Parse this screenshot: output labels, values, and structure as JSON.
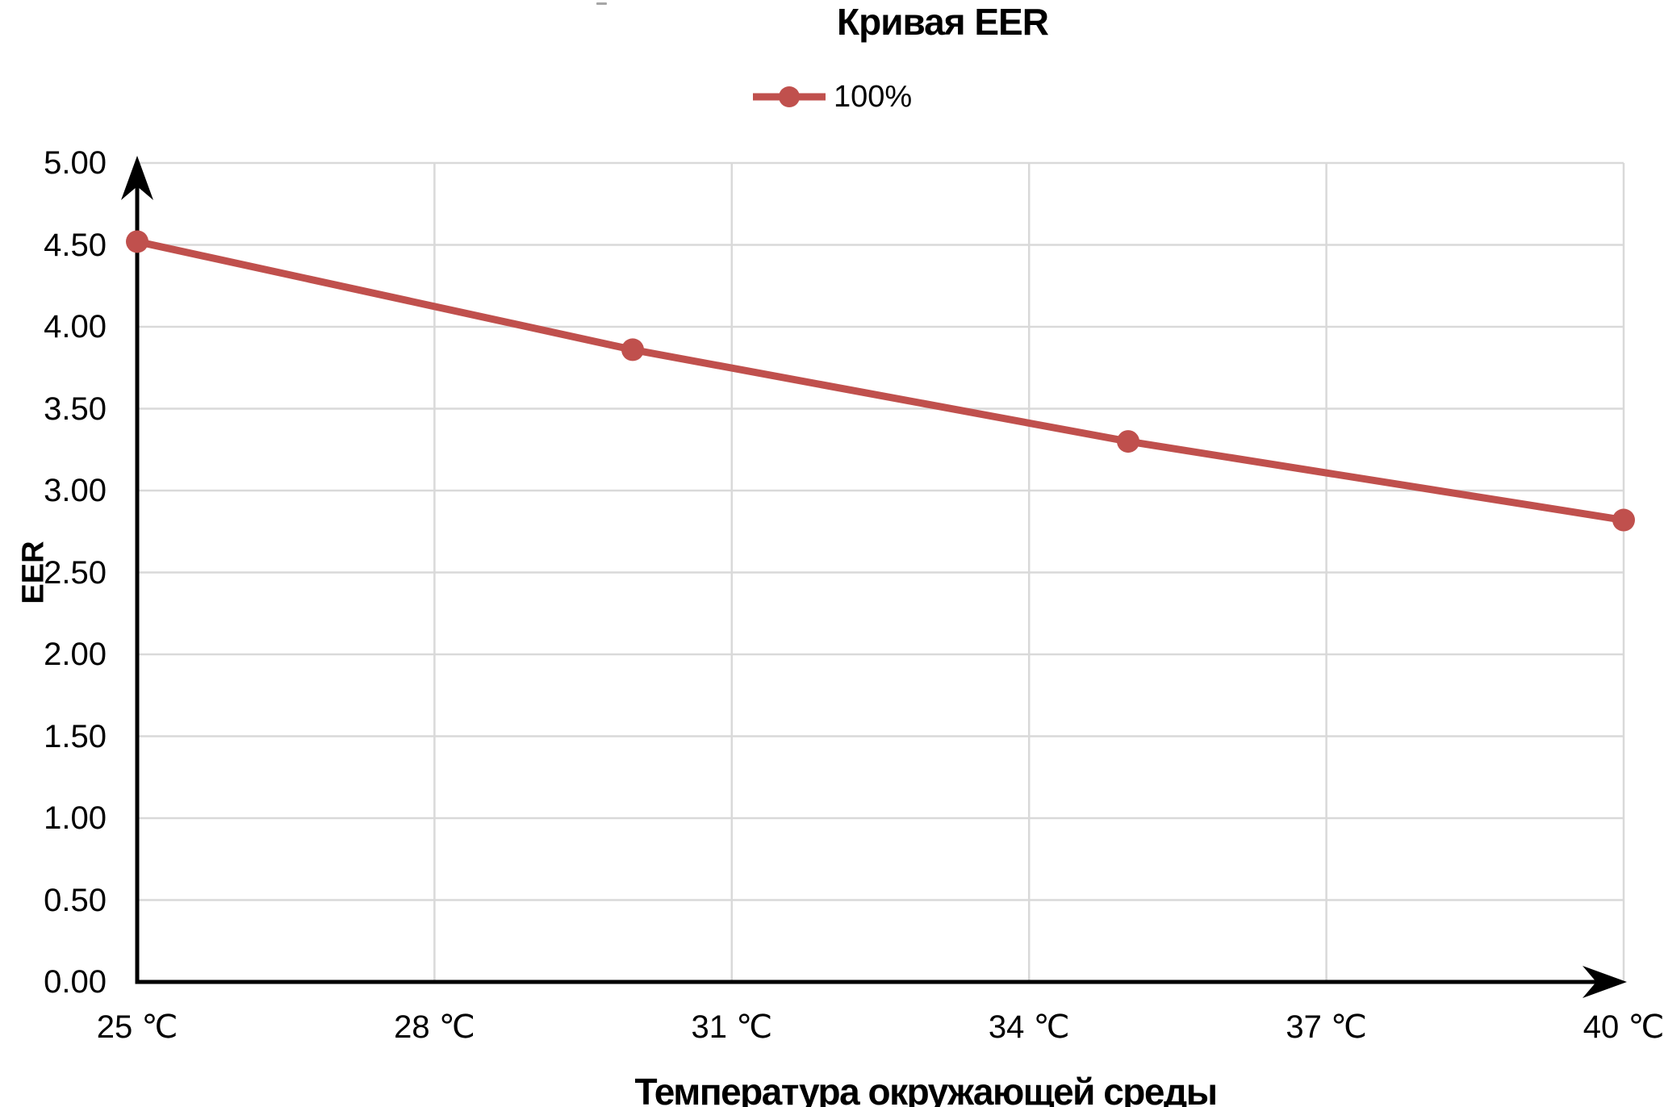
{
  "chart_data": {
    "type": "line",
    "title": "Кривая EER",
    "xlabel": "Температура окружающей среды",
    "ylabel": "EER",
    "legend_position": "top",
    "grid": true,
    "xlim": [
      25,
      40
    ],
    "ylim": [
      0,
      5
    ],
    "series": [
      {
        "name": "100%",
        "color": "#C0504D",
        "x": [
          25,
          30,
          35,
          40
        ],
        "values": [
          4.52,
          3.86,
          3.3,
          2.82
        ]
      }
    ],
    "x_ticks": [
      {
        "value": 25,
        "label": "25 ℃"
      },
      {
        "value": 28,
        "label": "28 ℃"
      },
      {
        "value": 31,
        "label": "31 ℃"
      },
      {
        "value": 34,
        "label": "34 ℃"
      },
      {
        "value": 37,
        "label": "37 ℃"
      },
      {
        "value": 40,
        "label": "40 ℃"
      }
    ],
    "y_ticks": [
      {
        "value": 0.0,
        "label": "0.00"
      },
      {
        "value": 0.5,
        "label": "0.50"
      },
      {
        "value": 1.0,
        "label": "1.00"
      },
      {
        "value": 1.5,
        "label": "1.50"
      },
      {
        "value": 2.0,
        "label": "2.00"
      },
      {
        "value": 2.5,
        "label": "2.50"
      },
      {
        "value": 3.0,
        "label": "3.00"
      },
      {
        "value": 3.5,
        "label": "3.50"
      },
      {
        "value": 4.0,
        "label": "4.00"
      },
      {
        "value": 4.5,
        "label": "4.50"
      },
      {
        "value": 5.0,
        "label": "5.00"
      }
    ],
    "colors": {
      "series": "#C0504D",
      "gridline": "#D9D9D9",
      "axis": "#000000",
      "text": "#000000"
    }
  }
}
